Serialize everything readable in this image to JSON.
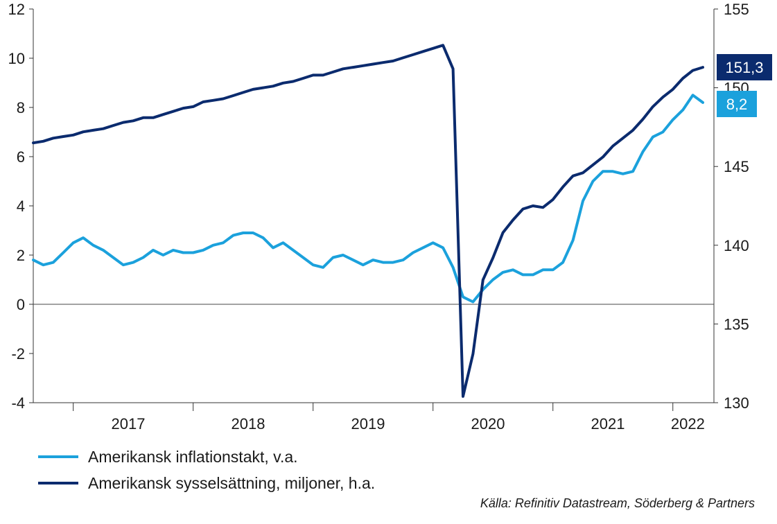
{
  "chart_data": {
    "type": "line",
    "x_start": "2016-09",
    "x_end": "2022-04",
    "x_tick_labels": [
      "2017",
      "2018",
      "2019",
      "2020",
      "2021",
      "2022"
    ],
    "y_left": {
      "ylim": [
        -4,
        12
      ],
      "ticks": [
        -4,
        -2,
        0,
        2,
        4,
        6,
        8,
        10,
        12
      ],
      "tick_labels": [
        "-4",
        "-2",
        "0",
        "2",
        "4",
        "6",
        "8",
        "10",
        "12"
      ]
    },
    "y_right": {
      "ylim": [
        130,
        155
      ],
      "ticks": [
        130,
        135,
        140,
        145,
        150,
        155
      ],
      "tick_labels": [
        "130",
        "135",
        "140",
        "145",
        "150",
        "155"
      ]
    },
    "series": [
      {
        "name": "Amerikansk inflationstakt, v.a.",
        "axis": "left",
        "color": "#1BA1DC",
        "end_label": "8,2",
        "points": [
          [
            "2016-09",
            1.8
          ],
          [
            "2016-10",
            1.6
          ],
          [
            "2016-11",
            1.7
          ],
          [
            "2016-12",
            2.1
          ],
          [
            "2017-01",
            2.5
          ],
          [
            "2017-02",
            2.7
          ],
          [
            "2017-03",
            2.4
          ],
          [
            "2017-04",
            2.2
          ],
          [
            "2017-05",
            1.9
          ],
          [
            "2017-06",
            1.6
          ],
          [
            "2017-07",
            1.7
          ],
          [
            "2017-08",
            1.9
          ],
          [
            "2017-09",
            2.2
          ],
          [
            "2017-10",
            2.0
          ],
          [
            "2017-11",
            2.2
          ],
          [
            "2017-12",
            2.1
          ],
          [
            "2018-01",
            2.1
          ],
          [
            "2018-02",
            2.2
          ],
          [
            "2018-03",
            2.4
          ],
          [
            "2018-04",
            2.5
          ],
          [
            "2018-05",
            2.8
          ],
          [
            "2018-06",
            2.9
          ],
          [
            "2018-07",
            2.9
          ],
          [
            "2018-08",
            2.7
          ],
          [
            "2018-09",
            2.3
          ],
          [
            "2018-10",
            2.5
          ],
          [
            "2018-11",
            2.2
          ],
          [
            "2018-12",
            1.9
          ],
          [
            "2019-01",
            1.6
          ],
          [
            "2019-02",
            1.5
          ],
          [
            "2019-03",
            1.9
          ],
          [
            "2019-04",
            2.0
          ],
          [
            "2019-05",
            1.8
          ],
          [
            "2019-06",
            1.6
          ],
          [
            "2019-07",
            1.8
          ],
          [
            "2019-08",
            1.7
          ],
          [
            "2019-09",
            1.7
          ],
          [
            "2019-10",
            1.8
          ],
          [
            "2019-11",
            2.1
          ],
          [
            "2019-12",
            2.3
          ],
          [
            "2020-01",
            2.5
          ],
          [
            "2020-02",
            2.3
          ],
          [
            "2020-03",
            1.5
          ],
          [
            "2020-04",
            0.3
          ],
          [
            "2020-05",
            0.1
          ],
          [
            "2020-06",
            0.6
          ],
          [
            "2020-07",
            1.0
          ],
          [
            "2020-08",
            1.3
          ],
          [
            "2020-09",
            1.4
          ],
          [
            "2020-10",
            1.2
          ],
          [
            "2020-11",
            1.2
          ],
          [
            "2020-12",
            1.4
          ],
          [
            "2021-01",
            1.4
          ],
          [
            "2021-02",
            1.7
          ],
          [
            "2021-03",
            2.6
          ],
          [
            "2021-04",
            4.2
          ],
          [
            "2021-05",
            5.0
          ],
          [
            "2021-06",
            5.4
          ],
          [
            "2021-07",
            5.4
          ],
          [
            "2021-08",
            5.3
          ],
          [
            "2021-09",
            5.4
          ],
          [
            "2021-10",
            6.2
          ],
          [
            "2021-11",
            6.8
          ],
          [
            "2021-12",
            7.0
          ],
          [
            "2022-01",
            7.5
          ],
          [
            "2022-02",
            7.9
          ],
          [
            "2022-03",
            8.5
          ],
          [
            "2022-04",
            8.2
          ]
        ]
      },
      {
        "name": "Amerikansk sysselsättning, miljoner, h.a.",
        "axis": "right",
        "color": "#0B2B6E",
        "end_label": "151,3",
        "points": [
          [
            "2016-09",
            146.5
          ],
          [
            "2016-10",
            146.6
          ],
          [
            "2016-11",
            146.8
          ],
          [
            "2016-12",
            146.9
          ],
          [
            "2017-01",
            147.0
          ],
          [
            "2017-02",
            147.2
          ],
          [
            "2017-03",
            147.3
          ],
          [
            "2017-04",
            147.4
          ],
          [
            "2017-05",
            147.6
          ],
          [
            "2017-06",
            147.8
          ],
          [
            "2017-07",
            147.9
          ],
          [
            "2017-08",
            148.1
          ],
          [
            "2017-09",
            148.1
          ],
          [
            "2017-10",
            148.3
          ],
          [
            "2017-11",
            148.5
          ],
          [
            "2017-12",
            148.7
          ],
          [
            "2018-01",
            148.8
          ],
          [
            "2018-02",
            149.1
          ],
          [
            "2018-03",
            149.2
          ],
          [
            "2018-04",
            149.3
          ],
          [
            "2018-05",
            149.5
          ],
          [
            "2018-06",
            149.7
          ],
          [
            "2018-07",
            149.9
          ],
          [
            "2018-08",
            150.0
          ],
          [
            "2018-09",
            150.1
          ],
          [
            "2018-10",
            150.3
          ],
          [
            "2018-11",
            150.4
          ],
          [
            "2018-12",
            150.6
          ],
          [
            "2019-01",
            150.8
          ],
          [
            "2019-02",
            150.8
          ],
          [
            "2019-03",
            151.0
          ],
          [
            "2019-04",
            151.2
          ],
          [
            "2019-05",
            151.3
          ],
          [
            "2019-06",
            151.4
          ],
          [
            "2019-07",
            151.5
          ],
          [
            "2019-08",
            151.6
          ],
          [
            "2019-09",
            151.7
          ],
          [
            "2019-10",
            151.9
          ],
          [
            "2019-11",
            152.1
          ],
          [
            "2019-12",
            152.3
          ],
          [
            "2020-01",
            152.5
          ],
          [
            "2020-02",
            152.7
          ],
          [
            "2020-03",
            151.2
          ],
          [
            "2020-04",
            130.4
          ],
          [
            "2020-05",
            133.1
          ],
          [
            "2020-06",
            137.8
          ],
          [
            "2020-07",
            139.2
          ],
          [
            "2020-08",
            140.8
          ],
          [
            "2020-09",
            141.6
          ],
          [
            "2020-10",
            142.3
          ],
          [
            "2020-11",
            142.5
          ],
          [
            "2020-12",
            142.4
          ],
          [
            "2021-01",
            142.9
          ],
          [
            "2021-02",
            143.7
          ],
          [
            "2021-03",
            144.4
          ],
          [
            "2021-04",
            144.6
          ],
          [
            "2021-05",
            145.1
          ],
          [
            "2021-06",
            145.6
          ],
          [
            "2021-07",
            146.3
          ],
          [
            "2021-08",
            146.8
          ],
          [
            "2021-09",
            147.3
          ],
          [
            "2021-10",
            148.0
          ],
          [
            "2021-11",
            148.8
          ],
          [
            "2021-12",
            149.4
          ],
          [
            "2022-01",
            149.9
          ],
          [
            "2022-02",
            150.6
          ],
          [
            "2022-03",
            151.1
          ],
          [
            "2022-04",
            151.3
          ]
        ]
      }
    ]
  },
  "legend": [
    {
      "label": "Amerikansk inflationstakt, v.a.",
      "color": "#1BA1DC"
    },
    {
      "label": "Amerikansk sysselsättning, miljoner, h.a.",
      "color": "#0B2B6E"
    }
  ],
  "source": "Källa: Refinitiv Datastream, Söderberg & Partners"
}
